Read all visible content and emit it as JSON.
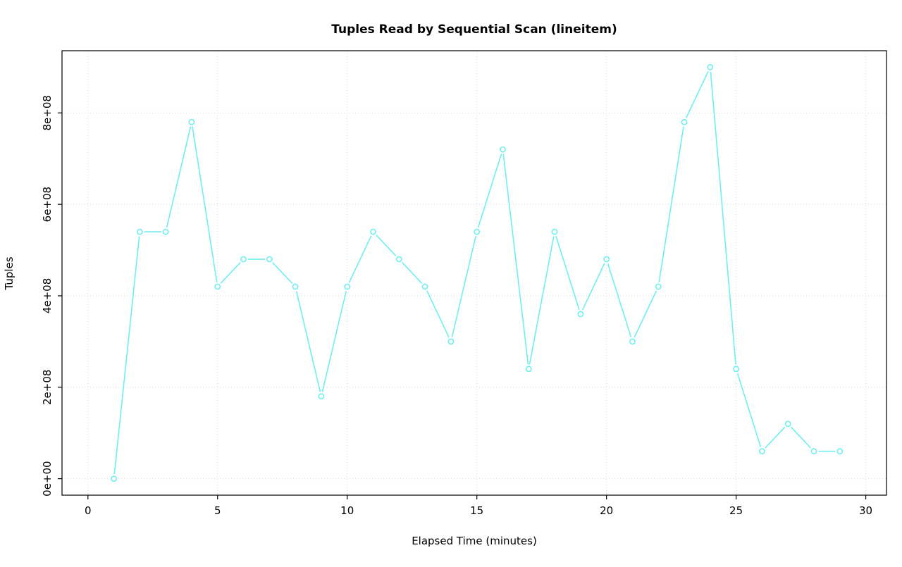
{
  "chart_data": {
    "type": "line",
    "title": "Tuples Read by Sequential Scan (lineitem)",
    "xlabel": "Elapsed Time (minutes)",
    "ylabel": "Tuples",
    "x": [
      1,
      2,
      3,
      4,
      5,
      6,
      7,
      8,
      9,
      10,
      11,
      12,
      13,
      14,
      15,
      16,
      17,
      18,
      19,
      20,
      21,
      22,
      23,
      24,
      25,
      26,
      27,
      28,
      29
    ],
    "values": [
      0,
      540000000,
      540000000,
      780000000,
      420000000,
      480000000,
      480000000,
      420000000,
      180000000,
      420000000,
      540000000,
      480000000,
      420000000,
      300000000,
      540000000,
      720000000,
      240000000,
      540000000,
      360000000,
      480000000,
      300000000,
      420000000,
      780000000,
      900000000,
      240000000,
      60000000,
      120000000,
      60000000,
      60000000
    ],
    "xlim": [
      0,
      30
    ],
    "ylim": [
      0,
      900000000
    ],
    "x_ticks": [
      0,
      5,
      10,
      15,
      20,
      25,
      30
    ],
    "x_tick_labels": [
      "0",
      "5",
      "10",
      "15",
      "20",
      "25",
      "30"
    ],
    "y_ticks": [
      0,
      200000000,
      400000000,
      600000000,
      800000000
    ],
    "y_tick_labels": [
      "0e+00",
      "2e+08",
      "4e+08",
      "6e+08",
      "8e+08"
    ],
    "grid": true,
    "legend": "none",
    "marker": "open-circle",
    "line_color": "#6FEFEF",
    "grid_color": "#d9d9d9",
    "axis_color": "#000000"
  }
}
